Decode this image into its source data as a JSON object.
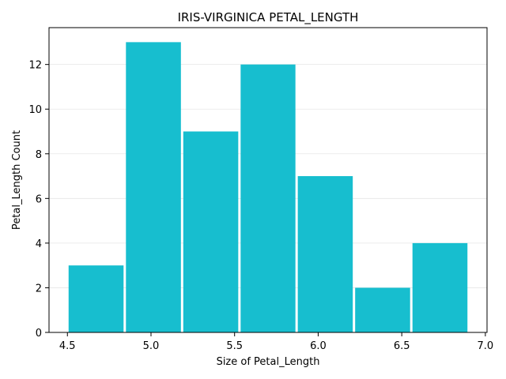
{
  "chart_data": {
    "type": "bar",
    "title": "IRIS-VIRGINICA PETAL_LENGTH",
    "xlabel": "Size of Petal_Length",
    "ylabel": "Petal_Length Count",
    "bins": [
      {
        "start": 4.5,
        "end": 4.843,
        "count": 3
      },
      {
        "start": 4.843,
        "end": 5.186,
        "count": 13
      },
      {
        "start": 5.186,
        "end": 5.529,
        "count": 9
      },
      {
        "start": 5.529,
        "end": 5.871,
        "count": 12
      },
      {
        "start": 5.871,
        "end": 6.214,
        "count": 7
      },
      {
        "start": 6.214,
        "end": 6.557,
        "count": 2
      },
      {
        "start": 6.557,
        "end": 6.9,
        "count": 4
      }
    ],
    "xlim": [
      4.39,
      7.01
    ],
    "ylim": [
      0,
      13.65
    ],
    "x_ticks": [
      "4.5",
      "5.0",
      "5.5",
      "6.0",
      "6.5",
      "7.0"
    ],
    "y_ticks": [
      "0",
      "2",
      "4",
      "6",
      "8",
      "10",
      "12"
    ],
    "grid": "horizontal",
    "bar_color": "#17becf",
    "legend": "none"
  }
}
